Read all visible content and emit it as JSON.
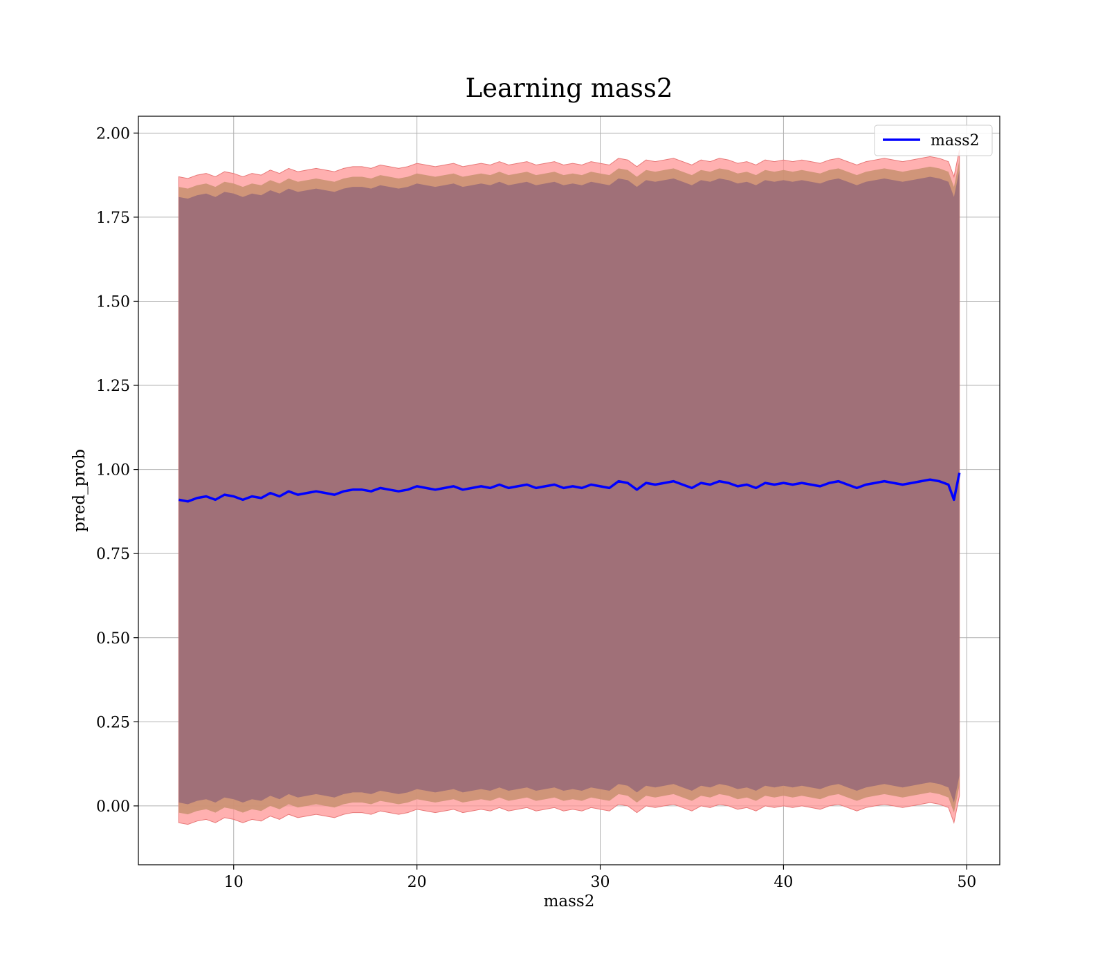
{
  "chart_data": {
    "type": "line",
    "title": "Learning mass2",
    "xlabel": "mass2",
    "ylabel": "pred_prob",
    "xlim": [
      4.8,
      51.8
    ],
    "ylim": [
      -0.175,
      2.05
    ],
    "xticks": [
      10,
      20,
      30,
      40,
      50
    ],
    "xtick_labels": [
      "10",
      "20",
      "30",
      "40",
      "50"
    ],
    "yticks": [
      0.0,
      0.25,
      0.5,
      0.75,
      1.0,
      1.25,
      1.5,
      1.75,
      2.0
    ],
    "ytick_labels": [
      "0.00",
      "0.25",
      "0.50",
      "0.75",
      "1.00",
      "1.25",
      "1.50",
      "1.75",
      "2.00"
    ],
    "grid": true,
    "legend": {
      "placement": "top-right",
      "entries": [
        "mass2"
      ]
    },
    "colors": {
      "line": "#0000ff",
      "outer_band": "#ff9696",
      "inner_band": "#c89070",
      "core_band": "#a07078",
      "grid": "#b0b0b0"
    },
    "series": [
      {
        "name": "mass2",
        "x": [
          7.0,
          7.5,
          8.0,
          8.5,
          9.0,
          9.5,
          10.0,
          10.5,
          11.0,
          11.5,
          12.0,
          12.5,
          13.0,
          13.5,
          14.0,
          14.5,
          15.0,
          15.5,
          16.0,
          16.5,
          17.0,
          17.5,
          18.0,
          18.5,
          19.0,
          19.5,
          20.0,
          20.5,
          21.0,
          21.5,
          22.0,
          22.5,
          23.0,
          23.5,
          24.0,
          24.5,
          25.0,
          25.5,
          26.0,
          26.5,
          27.0,
          27.5,
          28.0,
          28.5,
          29.0,
          29.5,
          30.0,
          30.5,
          31.0,
          31.5,
          32.0,
          32.5,
          33.0,
          33.5,
          34.0,
          34.5,
          35.0,
          35.5,
          36.0,
          36.5,
          37.0,
          37.5,
          38.0,
          38.5,
          39.0,
          39.5,
          40.0,
          40.5,
          41.0,
          41.5,
          42.0,
          42.5,
          43.0,
          43.5,
          44.0,
          44.5,
          45.0,
          45.5,
          46.0,
          46.5,
          47.0,
          47.5,
          48.0,
          48.5,
          49.0,
          49.3,
          49.6
        ],
        "values": [
          0.91,
          0.905,
          0.915,
          0.92,
          0.91,
          0.925,
          0.92,
          0.91,
          0.92,
          0.915,
          0.93,
          0.92,
          0.935,
          0.925,
          0.93,
          0.935,
          0.93,
          0.925,
          0.935,
          0.94,
          0.94,
          0.935,
          0.945,
          0.94,
          0.935,
          0.94,
          0.95,
          0.945,
          0.94,
          0.945,
          0.95,
          0.94,
          0.945,
          0.95,
          0.945,
          0.955,
          0.945,
          0.95,
          0.955,
          0.945,
          0.95,
          0.955,
          0.945,
          0.95,
          0.945,
          0.955,
          0.95,
          0.945,
          0.965,
          0.96,
          0.94,
          0.96,
          0.955,
          0.96,
          0.965,
          0.955,
          0.945,
          0.96,
          0.955,
          0.965,
          0.96,
          0.95,
          0.955,
          0.945,
          0.96,
          0.955,
          0.96,
          0.955,
          0.96,
          0.955,
          0.95,
          0.96,
          0.965,
          0.955,
          0.945,
          0.955,
          0.96,
          0.965,
          0.96,
          0.955,
          0.96,
          0.965,
          0.97,
          0.965,
          0.955,
          0.91,
          0.99
        ],
        "band_outer": 0.96,
        "band_inner": 0.93,
        "band_core": 0.9
      }
    ]
  }
}
